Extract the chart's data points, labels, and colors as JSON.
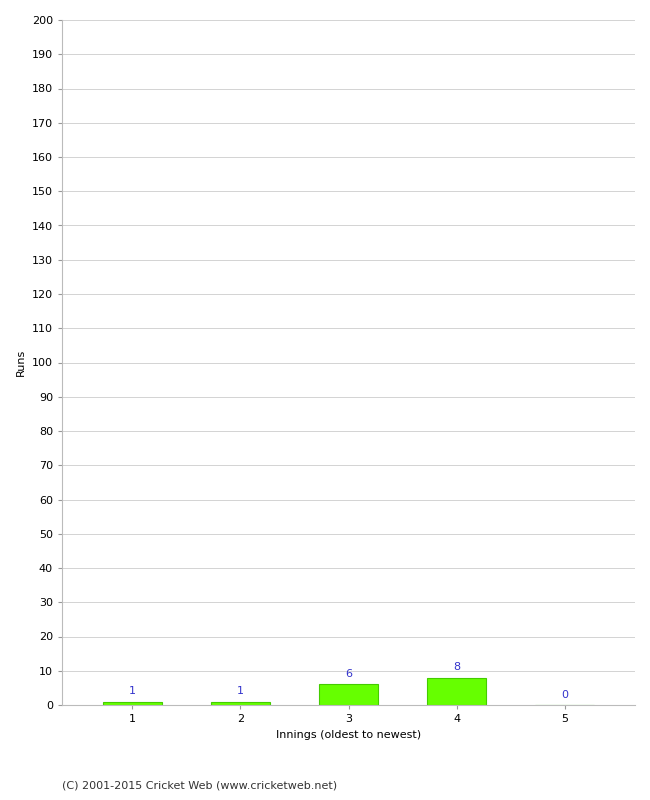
{
  "innings": [
    1,
    2,
    3,
    4,
    5
  ],
  "runs": [
    1,
    1,
    6,
    8,
    0
  ],
  "bar_color": "#66ff00",
  "bar_edge_color": "#44cc00",
  "xlabel": "Innings (oldest to newest)",
  "ylabel": "Runs",
  "ylim": [
    0,
    200
  ],
  "yticks": [
    0,
    10,
    20,
    30,
    40,
    50,
    60,
    70,
    80,
    90,
    100,
    110,
    120,
    130,
    140,
    150,
    160,
    170,
    180,
    190,
    200
  ],
  "label_color": "#3333cc",
  "footer": "(C) 2001-2015 Cricket Web (www.cricketweb.net)",
  "background_color": "#ffffff",
  "grid_color": "#cccccc",
  "tick_label_fontsize": 8,
  "axis_label_fontsize": 8,
  "bar_label_fontsize": 8,
  "footer_fontsize": 8
}
